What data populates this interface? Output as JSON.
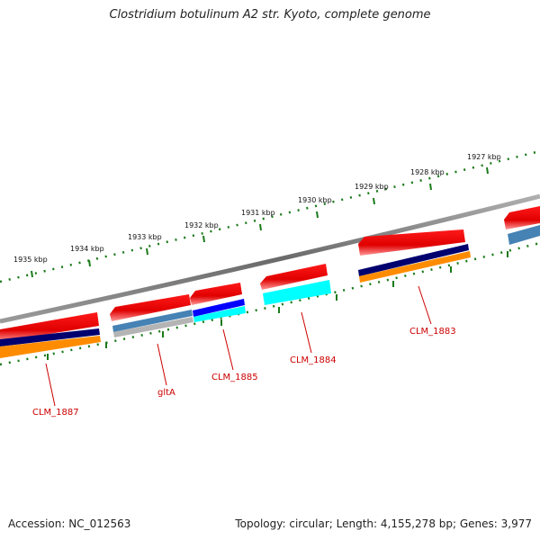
{
  "title": "Clostridium botulinum A2 str. Kyoto, complete genome",
  "footer": {
    "accession": "Accession: NC_012563",
    "summary": "Topology: circular; Length: 4,155,278 bp; Genes: 3,977"
  },
  "ticks": [
    "1927 kbp",
    "1928 kbp",
    "1929 kbp",
    "1930 kbp",
    "1931 kbp",
    "1932 kbp",
    "1933 kbp",
    "1934 kbp",
    "1935 kbp"
  ],
  "genes": [
    "CLM_1883",
    "CLM_1884",
    "CLM_1885",
    "gltA",
    "CLM_1887"
  ],
  "colors": {
    "backbone": "#808080",
    "tick": "#1a7a1a",
    "cds": "#e60000",
    "gene_label": "#cc0000",
    "navy": "#00006e",
    "orange": "#ff8c00",
    "cyan": "#00ffff",
    "blue": "#0000ff",
    "steel": "#4682b4",
    "gray": "#b4b4b4"
  }
}
